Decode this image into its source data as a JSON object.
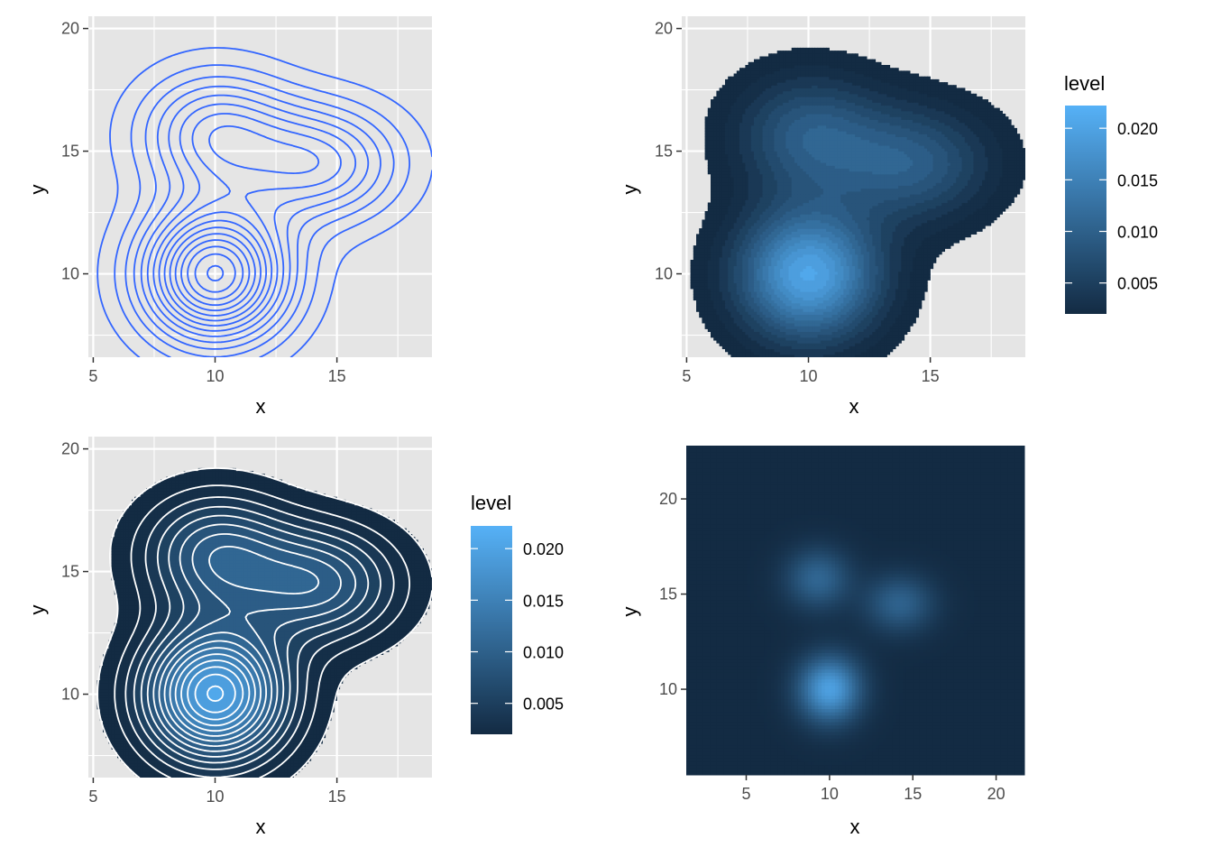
{
  "colors": {
    "panel_background": "#e5e5e5",
    "gridline": "#ffffff",
    "contour_blue": "#3366ff",
    "fill_low": "#132b43",
    "fill_high": "#56b1f7"
  },
  "chart_data": [
    {
      "type": "contour",
      "variant": "density-2d-lines",
      "xlabel": "x",
      "ylabel": "y",
      "xlim": [
        4.8,
        18.9
      ],
      "ylim": [
        6.6,
        20.5
      ],
      "x_ticks": [
        5,
        10,
        15
      ],
      "y_ticks": [
        10,
        15,
        20
      ],
      "x_tick_labels": [
        "5",
        "10",
        "15"
      ],
      "y_tick_labels": [
        "10",
        "15",
        "20"
      ],
      "grid": true,
      "line_color": "#3366ff",
      "peaks": [
        {
          "x": 10,
          "y": 10,
          "weight": 0.021
        },
        {
          "x": 10,
          "y": 15.7,
          "weight": 0.0098
        },
        {
          "x": 14.3,
          "y": 14.5,
          "weight": 0.0099
        }
      ]
    },
    {
      "type": "contour",
      "variant": "density-2d-filled",
      "xlabel": "x",
      "ylabel": "y",
      "xlim": [
        4.8,
        18.9
      ],
      "ylim": [
        6.6,
        20.5
      ],
      "x_ticks": [
        5,
        10,
        15
      ],
      "y_ticks": [
        10,
        15,
        20
      ],
      "x_tick_labels": [
        "5",
        "10",
        "15"
      ],
      "y_tick_labels": [
        "10",
        "15",
        "20"
      ],
      "grid": true,
      "legend": {
        "title": "level",
        "placement": "right",
        "range": [
          0.002,
          0.0222
        ],
        "ticks": [
          0.005,
          0.01,
          0.015,
          0.02
        ],
        "tick_labels": [
          "0.005",
          "0.010",
          "0.015",
          "0.020"
        ]
      }
    },
    {
      "type": "contour",
      "variant": "density-2d-filled-with-lines",
      "xlabel": "x",
      "ylabel": "y",
      "xlim": [
        4.8,
        18.9
      ],
      "ylim": [
        6.6,
        20.5
      ],
      "x_ticks": [
        5,
        10,
        15
      ],
      "y_ticks": [
        10,
        15,
        20
      ],
      "x_tick_labels": [
        "5",
        "10",
        "15"
      ],
      "y_tick_labels": [
        "10",
        "15",
        "20"
      ],
      "grid": true,
      "line_color": "#ffffff",
      "legend": {
        "title": "level",
        "placement": "right",
        "range": [
          0.002,
          0.0222
        ],
        "ticks": [
          0.005,
          0.01,
          0.015,
          0.02
        ],
        "tick_labels": [
          "0.005",
          "0.010",
          "0.015",
          "0.020"
        ]
      }
    },
    {
      "type": "heatmap",
      "variant": "density-raster",
      "xlabel": "x",
      "ylabel": "y",
      "xlim": [
        1.4,
        21.7
      ],
      "ylim": [
        5.5,
        22.8
      ],
      "x_ticks": [
        5,
        10,
        15,
        20
      ],
      "y_ticks": [
        10,
        15,
        20
      ],
      "x_tick_labels": [
        "5",
        "10",
        "15",
        "20"
      ],
      "y_tick_labels": [
        "10",
        "15",
        "20"
      ],
      "grid": false,
      "peaks": [
        {
          "x": 10,
          "y": 10,
          "weight": 0.021
        },
        {
          "x": 9.3,
          "y": 15.8,
          "weight": 0.0105
        },
        {
          "x": 14.2,
          "y": 14.5,
          "weight": 0.0098
        }
      ]
    }
  ]
}
